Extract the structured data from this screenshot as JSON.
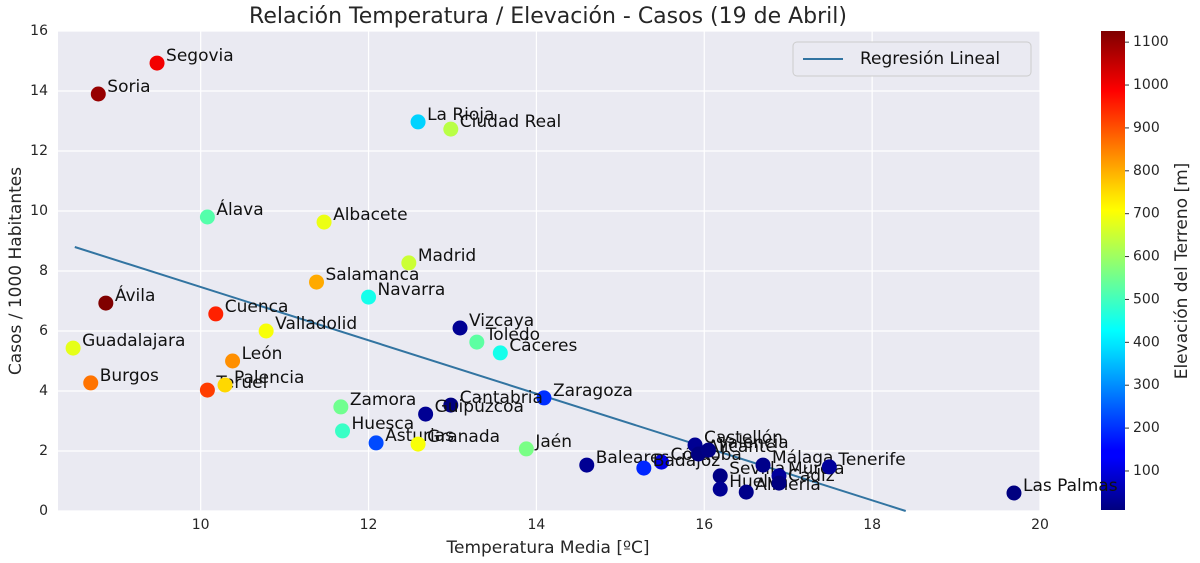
{
  "chart_data": {
    "type": "scatter",
    "title": "Relación Temperatura / Elevación - Casos (19 de Abril)",
    "x_label": "Temperatura Media [ºC]",
    "y_label": "Casos / 1000 Habitantes",
    "xlim": [
      8.3,
      20
    ],
    "xticks": [
      10,
      12,
      14,
      16,
      18,
      20
    ],
    "ylim": [
      0,
      16
    ],
    "yticks": [
      0,
      2,
      4,
      6,
      8,
      10,
      12,
      14,
      16
    ],
    "grid": true,
    "legend": "upper right",
    "points": {
      "labels": [
        "Segovia",
        "Soria",
        "La Rioja",
        "Ciudad Real",
        "Álava",
        "Albacete",
        "Madrid",
        "Salamanca",
        "Navarra",
        "Ávila",
        "Cuenca",
        "Valladolid",
        "Vizcaya",
        "Toledo",
        "Cáceres",
        "Guadalajara",
        "León",
        "Burgos",
        "Teruel",
        "Palencia",
        "Zaragoza",
        "Cantabria",
        "Zamora",
        "Guipúzcoa",
        "Huesca",
        "Asturias",
        "Granada",
        "Jaén",
        "Baleares",
        "Córdoba",
        "Badajoz",
        "Castellón",
        "Alicante",
        "Valencia",
        "Sevilla",
        "Huelva",
        "Almería",
        "Málaga",
        "Murcia",
        "Cádiz",
        "Tenerife",
        "Las Palmas"
      ],
      "x": [
        9.48,
        8.78,
        12.59,
        12.98,
        10.08,
        11.47,
        12.48,
        11.38,
        12.0,
        8.87,
        10.18,
        10.78,
        13.09,
        13.29,
        13.57,
        8.48,
        10.38,
        8.69,
        10.08,
        10.29,
        14.09,
        12.98,
        11.67,
        12.68,
        11.69,
        12.09,
        12.59,
        13.88,
        14.6,
        15.49,
        15.28,
        15.89,
        15.93,
        16.05,
        16.19,
        16.19,
        16.5,
        16.7,
        16.89,
        16.89,
        17.49,
        19.69
      ],
      "y": [
        14.93,
        13.9,
        12.97,
        12.73,
        9.8,
        9.63,
        8.27,
        7.63,
        7.13,
        6.93,
        6.57,
        6.0,
        6.1,
        5.63,
        5.27,
        5.43,
        5.0,
        4.27,
        4.03,
        4.2,
        3.77,
        3.53,
        3.47,
        3.23,
        2.67,
        2.27,
        2.23,
        2.07,
        1.53,
        1.63,
        1.43,
        2.2,
        1.9,
        2.03,
        1.17,
        0.73,
        0.63,
        1.53,
        1.17,
        0.93,
        1.47,
        0.6
      ],
      "elevation": [
        1000,
        1100,
        380,
        630,
        520,
        686,
        650,
        800,
        450,
        1126,
        950,
        700,
        30,
        530,
        450,
        680,
        830,
        860,
        920,
        750,
        200,
        10,
        550,
        30,
        490,
        230,
        700,
        560,
        30,
        120,
        190,
        30,
        10,
        15,
        15,
        30,
        20,
        20,
        40,
        10,
        40,
        10
      ]
    },
    "regression": {
      "name": "Regresión Lineal",
      "color": "#3274a1",
      "x": [
        8.5,
        18.4
      ],
      "y": [
        8.8,
        0
      ]
    },
    "colorbar": {
      "label": "Elevación del Terreno [m]",
      "clim": [
        9,
        1126
      ],
      "ticks": [
        100,
        200,
        300,
        400,
        500,
        600,
        700,
        800,
        900,
        1000,
        1100
      ]
    }
  }
}
